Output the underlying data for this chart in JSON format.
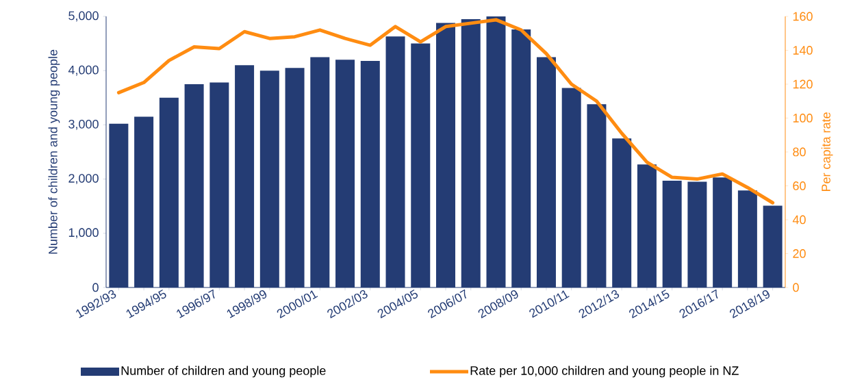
{
  "chart_data": {
    "type": "bar",
    "categories": [
      "1992/93",
      null,
      "1994/95",
      null,
      "1996/97",
      null,
      "1998/99",
      null,
      "2000/01",
      null,
      "2002/03",
      null,
      "2004/05",
      null,
      "2006/07",
      null,
      "2008/09",
      null,
      "2010/11",
      null,
      "2012/13",
      null,
      "2014/15",
      null,
      "2016/17",
      null,
      "2018/19"
    ],
    "series": [
      {
        "name": "Number of children and young people",
        "color": "#243c74",
        "values": [
          3020,
          3150,
          3500,
          3750,
          3780,
          4100,
          4000,
          4050,
          4250,
          4200,
          4180,
          4630,
          4500,
          4880,
          4950,
          5000,
          4760,
          4250,
          3680,
          3380,
          2750,
          2270,
          1970,
          1950,
          2030,
          1790,
          1510
        ]
      },
      {
        "name": "Rate per 10,000 children and young people in NZ",
        "type": "line",
        "axis": "y2",
        "color": "#ff8c11",
        "values": [
          115,
          121,
          134,
          142,
          141,
          151,
          147,
          148,
          152,
          147,
          143,
          154,
          145,
          154,
          156,
          158,
          152,
          138,
          120,
          110,
          91,
          74,
          65,
          64,
          67,
          59,
          50
        ]
      }
    ],
    "ylabel": "Number of children and young people",
    "y2label": "Per capita rate",
    "ylim": [
      0,
      5000
    ],
    "yticks": [
      0,
      {
        "value": 1000,
        "label": "1,000"
      },
      {
        "value": 2000,
        "label": "2,000"
      },
      {
        "value": 3000,
        "label": "3,000"
      },
      {
        "value": 4000,
        "label": "4,000"
      },
      {
        "value": 5000,
        "label": "5,000"
      }
    ],
    "y2lim": [
      0,
      160
    ],
    "y2ticks": [
      0,
      20,
      40,
      60,
      80,
      100,
      120,
      140,
      160
    ],
    "grid": false,
    "legend": "bottom"
  }
}
